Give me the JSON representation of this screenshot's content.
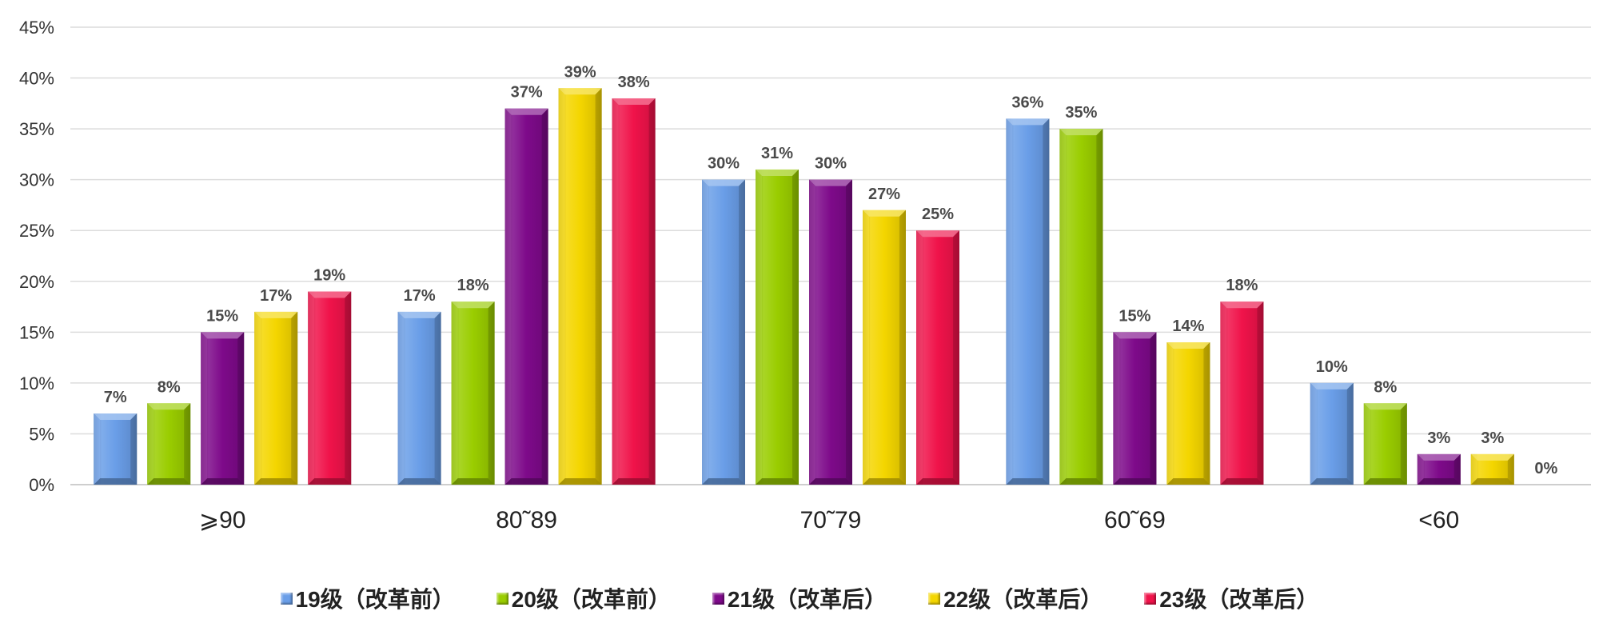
{
  "chart_data": {
    "type": "bar",
    "categories": [
      "≥90",
      "80~89",
      "70~79",
      "60~69",
      "<60"
    ],
    "category_display": [
      "⩾90",
      "80˜89",
      "70˜79",
      "60˜69",
      "<60"
    ],
    "series": [
      {
        "name": "19级（改革前）",
        "color": "#6a9ee8",
        "values": [
          7,
          17,
          30,
          36,
          10
        ]
      },
      {
        "name": "20级（改革前）",
        "color": "#9acd00",
        "values": [
          8,
          18,
          31,
          35,
          8
        ]
      },
      {
        "name": "21级（改革后）",
        "color": "#7e0a8a",
        "values": [
          15,
          37,
          30,
          15,
          3
        ]
      },
      {
        "name": "22级（改革后）",
        "color": "#f4d600",
        "values": [
          17,
          39,
          27,
          14,
          3
        ]
      },
      {
        "name": "23级（改革后）",
        "color": "#f0134a",
        "values": [
          19,
          38,
          25,
          18,
          0
        ]
      }
    ],
    "value_suffix": "%",
    "y_ticks": [
      "0%",
      "5%",
      "10%",
      "15%",
      "20%",
      "25%",
      "30%",
      "35%",
      "40%",
      "45%"
    ],
    "ylim": [
      0,
      45
    ],
    "y_step": 5,
    "grid": true,
    "legend_position": "bottom",
    "title": "",
    "xlabel": "",
    "ylabel": ""
  }
}
